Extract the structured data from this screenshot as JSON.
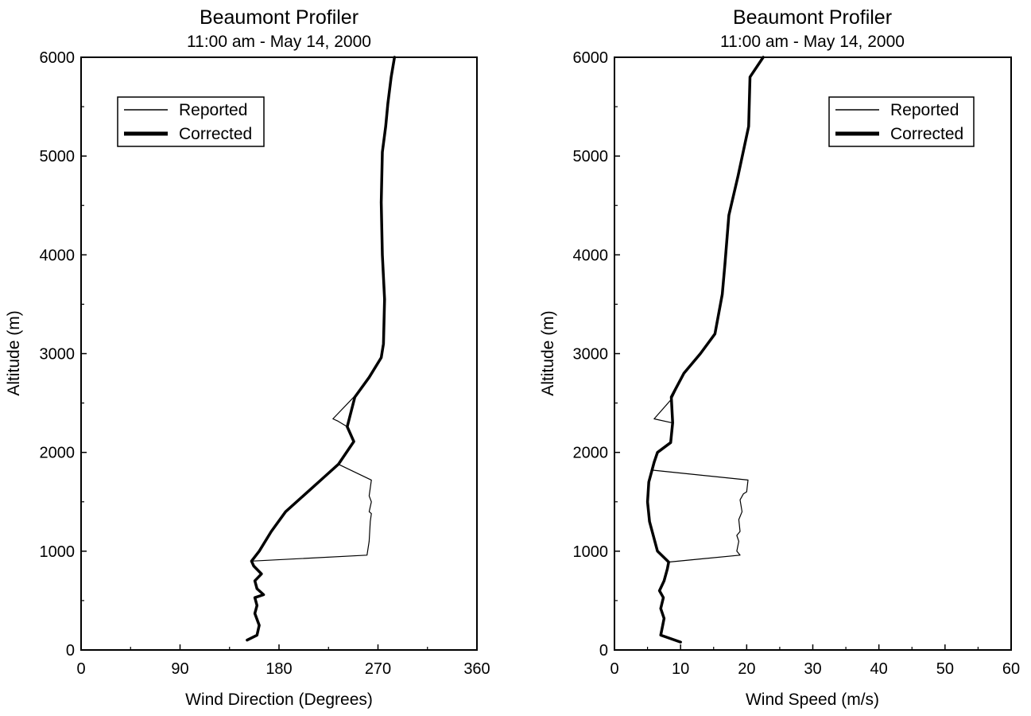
{
  "chart_data": [
    {
      "type": "line",
      "title": "Beaumont Profiler",
      "subtitle": "11:00 am - May 14, 2000",
      "xlabel": "Wind Direction (Degrees)",
      "ylabel": "Altitude (m)",
      "xlim": [
        0,
        360
      ],
      "ylim": [
        0,
        6000
      ],
      "xticks": [
        "0",
        "90",
        "180",
        "270",
        "360"
      ],
      "yticks": [
        "0",
        "1000",
        "2000",
        "3000",
        "4000",
        "5000",
        "6000"
      ],
      "grid": false,
      "legend": {
        "position": "top-left",
        "entries": [
          "Reported",
          "Corrected"
        ]
      },
      "series": [
        {
          "name": "Reported",
          "points": [
            [
              151,
              100
            ],
            [
              160,
              150
            ],
            [
              162,
              250
            ],
            [
              158,
              370
            ],
            [
              160,
              450
            ],
            [
              158,
              530
            ],
            [
              166,
              560
            ],
            [
              160,
              620
            ],
            [
              158,
              700
            ],
            [
              164,
              770
            ],
            [
              157,
              850
            ],
            [
              155,
              900
            ],
            [
              260,
              960
            ],
            [
              262,
              1100
            ],
            [
              263,
              1300
            ],
            [
              264,
              1380
            ],
            [
              262,
              1400
            ],
            [
              264,
              1500
            ],
            [
              262,
              1560
            ],
            [
              264,
              1720
            ],
            [
              234,
              1880
            ],
            [
              248,
              2110
            ],
            [
              242,
              2260
            ],
            [
              233,
              2320
            ],
            [
              229,
              2340
            ],
            [
              248,
              2560
            ],
            [
              262,
              2760
            ],
            [
              273,
              2960
            ],
            [
              275,
              3100
            ],
            [
              276,
              3550
            ],
            [
              274,
              4000
            ],
            [
              273,
              4530
            ],
            [
              274,
              5040
            ],
            [
              277,
              5300
            ],
            [
              279,
              5530
            ],
            [
              282,
              5800
            ],
            [
              285,
              6000
            ]
          ]
        },
        {
          "name": "Corrected",
          "points": [
            [
              151,
              100
            ],
            [
              160,
              150
            ],
            [
              162,
              250
            ],
            [
              158,
              370
            ],
            [
              160,
              450
            ],
            [
              158,
              530
            ],
            [
              166,
              560
            ],
            [
              160,
              620
            ],
            [
              158,
              700
            ],
            [
              164,
              770
            ],
            [
              157,
              850
            ],
            [
              155,
              900
            ],
            [
              162,
              1000
            ],
            [
              173,
              1200
            ],
            [
              186,
              1400
            ],
            [
              208,
              1620
            ],
            [
              222,
              1760
            ],
            [
              234,
              1880
            ],
            [
              248,
              2110
            ],
            [
              242,
              2260
            ],
            [
              249,
              2560
            ],
            [
              262,
              2760
            ],
            [
              273,
              2960
            ],
            [
              275,
              3100
            ],
            [
              276,
              3550
            ],
            [
              274,
              4000
            ],
            [
              273,
              4530
            ],
            [
              274,
              5040
            ],
            [
              277,
              5300
            ],
            [
              279,
              5530
            ],
            [
              282,
              5800
            ],
            [
              285,
              6000
            ]
          ]
        }
      ]
    },
    {
      "type": "line",
      "title": "Beaumont Profiler",
      "subtitle": "11:00 am - May 14, 2000",
      "xlabel": "Wind Speed (m/s)",
      "ylabel": "Altitude (m)",
      "xlim": [
        0,
        60
      ],
      "ylim": [
        0,
        6000
      ],
      "xticks": [
        "0",
        "10",
        "20",
        "30",
        "40",
        "50",
        "60"
      ],
      "yticks": [
        "0",
        "1000",
        "2000",
        "3000",
        "4000",
        "5000",
        "6000"
      ],
      "grid": false,
      "legend": {
        "position": "top-right",
        "entries": [
          "Reported",
          "Corrected"
        ]
      },
      "series": [
        {
          "name": "Reported",
          "points": [
            [
              10,
              80
            ],
            [
              7,
              150
            ],
            [
              7.3,
              250
            ],
            [
              7.5,
              320
            ],
            [
              7,
              420
            ],
            [
              7.4,
              530
            ],
            [
              6.8,
              600
            ],
            [
              7.5,
              700
            ],
            [
              8,
              820
            ],
            [
              8.2,
              890
            ],
            [
              19,
              960
            ],
            [
              18.5,
              1000
            ],
            [
              18.8,
              1100
            ],
            [
              18.5,
              1160
            ],
            [
              19,
              1200
            ],
            [
              18.8,
              1320
            ],
            [
              19.3,
              1400
            ],
            [
              19,
              1520
            ],
            [
              19.5,
              1580
            ],
            [
              20,
              1600
            ],
            [
              20.2,
              1720
            ],
            [
              5.8,
              1820
            ],
            [
              6.5,
              2000
            ],
            [
              8.5,
              2100
            ],
            [
              8.7,
              2300
            ],
            [
              6,
              2340
            ],
            [
              8.5,
              2530
            ],
            [
              8.8,
              2560
            ],
            [
              10.5,
              2800
            ],
            [
              13,
              3000
            ],
            [
              15.2,
              3200
            ],
            [
              16.3,
              3600
            ],
            [
              16.7,
              3900
            ],
            [
              17.3,
              4400
            ],
            [
              18.7,
              4800
            ],
            [
              20.3,
              5300
            ],
            [
              20.5,
              5800
            ],
            [
              22.5,
              6000
            ]
          ]
        },
        {
          "name": "Corrected",
          "points": [
            [
              10,
              80
            ],
            [
              7,
              150
            ],
            [
              7.3,
              250
            ],
            [
              7.5,
              320
            ],
            [
              7,
              420
            ],
            [
              7.4,
              530
            ],
            [
              6.8,
              600
            ],
            [
              7.5,
              700
            ],
            [
              8,
              820
            ],
            [
              8.2,
              890
            ],
            [
              6.5,
              1000
            ],
            [
              5.3,
              1300
            ],
            [
              5,
              1500
            ],
            [
              5.2,
              1700
            ],
            [
              6,
              1900
            ],
            [
              6.5,
              2000
            ],
            [
              8.5,
              2100
            ],
            [
              8.8,
              2300
            ],
            [
              8.6,
              2560
            ],
            [
              10.5,
              2800
            ],
            [
              13,
              3000
            ],
            [
              15.2,
              3200
            ],
            [
              16.3,
              3600
            ],
            [
              16.7,
              3900
            ],
            [
              17.3,
              4400
            ],
            [
              18.7,
              4800
            ],
            [
              20.3,
              5300
            ],
            [
              20.5,
              5800
            ],
            [
              22.5,
              6000
            ]
          ]
        }
      ]
    }
  ]
}
